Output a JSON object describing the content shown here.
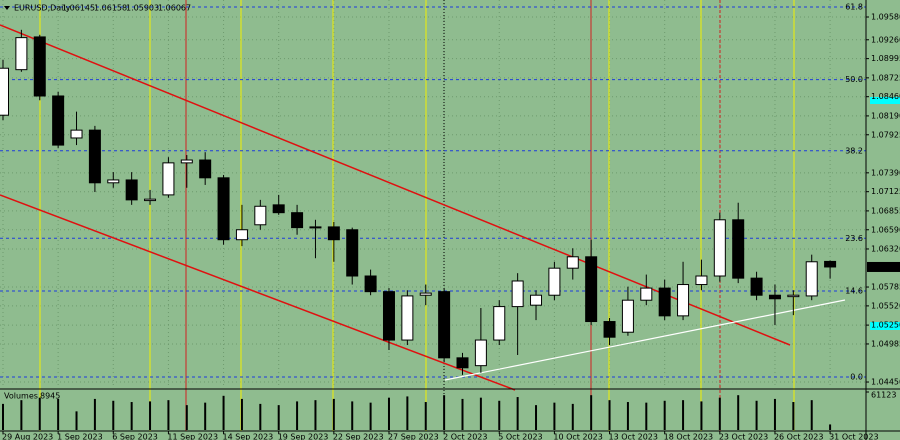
{
  "chart_data": {
    "type": "candlestick",
    "title": "EURUSD,Daily",
    "categories": [
      "29 Aug 2023",
      null,
      null,
      "1 Sep 2023",
      null,
      null,
      "6 Sep 2023",
      null,
      null,
      "11 Sep 2023",
      null,
      null,
      "14 Sep 2023",
      null,
      null,
      "19 Sep 2023",
      null,
      null,
      "22 Sep 2023",
      null,
      null,
      "27 Sep 2023",
      null,
      null,
      "2 Oct 2023",
      null,
      null,
      "5 Oct 2023",
      null,
      null,
      "10 Oct 2023",
      null,
      null,
      "13 Oct 2023",
      null,
      null,
      "18 Oct 2023",
      null,
      null,
      "23 Oct 2023",
      null,
      null,
      "26 Oct 2023",
      null,
      null,
      "31 Oct 2023"
    ],
    "open": [
      1.082,
      1.0884,
      1.093,
      1.0847,
      1.0788,
      1.0799,
      1.0725,
      1.0729,
      1.07,
      1.0708,
      1.0753,
      1.0757,
      1.0732,
      1.0645,
      1.0666,
      1.0694,
      1.0683,
      1.0663,
      1.0663,
      1.0659,
      1.0594,
      1.0572,
      1.0504,
      1.0567,
      1.0572,
      1.0479,
      1.0468,
      1.0504,
      1.0551,
      1.0553,
      1.0567,
      1.0605,
      1.0621,
      1.053,
      1.0515,
      1.056,
      1.0577,
      1.0538,
      1.0582,
      1.0594,
      1.0673,
      1.0591,
      1.0567,
      1.0565,
      1.0566,
      1.06145
    ],
    "high": [
      1.0898,
      1.094,
      1.0933,
      1.0853,
      1.0825,
      1.0805,
      1.074,
      1.074,
      1.0715,
      1.0761,
      1.0764,
      1.0768,
      1.0736,
      1.0694,
      1.0701,
      1.0708,
      1.0694,
      1.0673,
      1.067,
      1.0662,
      1.0603,
      1.0577,
      1.0574,
      1.0582,
      1.0577,
      1.0486,
      1.0549,
      1.056,
      1.0598,
      1.0574,
      1.0614,
      1.0633,
      1.0645,
      1.0535,
      1.0579,
      1.0596,
      1.0589,
      1.0614,
      1.0617,
      1.0683,
      1.0697,
      1.06,
      1.0582,
      1.0574,
      1.0624,
      1.06158
    ],
    "low": [
      1.0813,
      1.0881,
      1.0841,
      1.0774,
      1.0778,
      1.0712,
      1.0718,
      1.0694,
      1.0694,
      1.0704,
      1.0718,
      1.0722,
      1.0638,
      1.0636,
      1.0659,
      1.068,
      1.0652,
      1.0619,
      1.0614,
      1.0582,
      1.0567,
      1.049,
      1.0497,
      1.0553,
      1.0473,
      1.0455,
      1.0458,
      1.0497,
      1.0483,
      1.0532,
      1.056,
      1.0589,
      1.0525,
      1.0497,
      1.051,
      1.0553,
      1.0532,
      1.0532,
      1.0574,
      1.0586,
      1.0584,
      1.056,
      1.0525,
      1.0539,
      1.056,
      1.05903
    ],
    "close": [
      1.0886,
      1.0929,
      1.0847,
      1.0778,
      1.0799,
      1.0725,
      1.0729,
      1.0701,
      1.0702,
      1.0753,
      1.0757,
      1.0732,
      1.0645,
      1.0659,
      1.0692,
      1.0683,
      1.0662,
      1.0662,
      1.0645,
      1.0594,
      1.0572,
      1.0504,
      1.0566,
      1.057,
      1.0479,
      1.0465,
      1.0504,
      1.0551,
      1.0587,
      1.0567,
      1.0605,
      1.0621,
      1.053,
      1.0508,
      1.056,
      1.0577,
      1.0538,
      1.0582,
      1.0594,
      1.0673,
      1.0591,
      1.0567,
      1.0562,
      1.0567,
      1.0614,
      1.06067
    ],
    "up_color": "#ffffff",
    "down_color": "#000000",
    "background": "#8fbc8f",
    "ylim": [
      1.04366,
      1.09819
    ],
    "yticks": [
      {
        "value": 1.0958,
        "label": "1.09580"
      },
      {
        "value": 1.0926,
        "label": "1.09260"
      },
      1.08995,
      1.08725,
      {
        "value": 1.0846,
        "label": "1.08460"
      },
      {
        "value": 1.0819,
        "label": "1.08190"
      },
      1.07925,
      {
        "value": 1.0739,
        "label": "1.07390"
      },
      1.07125,
      1.06855,
      {
        "value": 1.0659,
        "label": "1.06590"
      },
      {
        "value": 1.0632,
        "label": "1.06320"
      },
      1.05785,
      {
        "value": 1.0552,
        "label": "1.05520"
      },
      {
        "value": 1.0525,
        "label": "1.05250"
      },
      1.04985,
      {
        "value": 1.0445,
        "label": "1.04450"
      }
    ],
    "grid": true,
    "fibonacci": [
      {
        "name": "61.8",
        "price": 1.0972
      },
      {
        "name": "50.0",
        "price": 1.087
      },
      {
        "name": "38.2",
        "price": 1.077
      },
      {
        "name": "23.6",
        "price": 1.0647
      },
      {
        "name": "14.6",
        "price": 1.0573
      },
      {
        "name": "0.0",
        "price": 1.0452
      }
    ],
    "fib_color": "#1e3cdc",
    "volume": {
      "label": "Volumes",
      "values": [
        42000,
        48000,
        52000,
        50000,
        30000,
        50000,
        47000,
        45000,
        46000,
        48000,
        40000,
        44000,
        55000,
        50000,
        42000,
        40000,
        46000,
        48000,
        50000,
        46000,
        44000,
        52000,
        54000,
        45000,
        56000,
        50000,
        52000,
        47000,
        53000,
        40000,
        44000,
        42000,
        56000,
        48000,
        45000,
        44000,
        47000,
        48000,
        46000,
        52000,
        56000,
        47000,
        50000,
        45000,
        48000,
        8945
      ],
      "ylim": [
        0,
        61123
      ],
      "yticks": [
        61123
      ]
    }
  }
}
